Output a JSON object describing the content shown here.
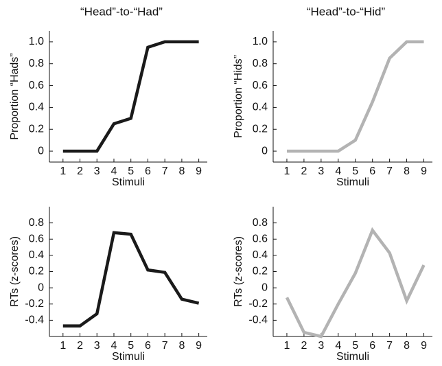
{
  "chart_data": [
    {
      "type": "line",
      "title": "“Head”-to-“Had”",
      "ylabel": "Proportion “Hads”",
      "xlabel": "Stimuli",
      "x": [
        1,
        2,
        3,
        4,
        5,
        6,
        7,
        8,
        9
      ],
      "xlim": [
        0.2,
        9.5
      ],
      "xticks": [
        1,
        2,
        3,
        4,
        5,
        6,
        7,
        8,
        9
      ],
      "ylim": [
        -0.1,
        1.1
      ],
      "yticks": [
        0,
        0.2,
        0.4,
        0.6,
        0.8,
        {
          "value": 1,
          "label": "1.0"
        }
      ],
      "series": [
        {
          "color": "#1a1a1a",
          "values": [
            0,
            0,
            0,
            0.25,
            0.3,
            0.95,
            1,
            1,
            1
          ]
        }
      ]
    },
    {
      "type": "line",
      "title": "“Head”-to-“Hid”",
      "ylabel": "Proportion “Hids”",
      "xlabel": "Stimuli",
      "x": [
        1,
        2,
        3,
        4,
        5,
        6,
        7,
        8,
        9
      ],
      "xlim": [
        0.2,
        9.5
      ],
      "xticks": [
        1,
        2,
        3,
        4,
        5,
        6,
        7,
        8,
        9
      ],
      "ylim": [
        -0.1,
        1.1
      ],
      "yticks": [
        0,
        0.2,
        0.4,
        0.6,
        0.8,
        {
          "value": 1,
          "label": "1.0"
        }
      ],
      "series": [
        {
          "color": "#b3b3b3",
          "values": [
            0,
            0,
            0,
            0,
            0.1,
            0.45,
            0.85,
            1,
            1
          ]
        }
      ]
    },
    {
      "type": "line",
      "ylabel": "RTs (z-scores)",
      "xlabel": "Stimuli",
      "x": [
        1,
        2,
        3,
        4,
        5,
        6,
        7,
        8,
        9
      ],
      "xlim": [
        0.2,
        9.5
      ],
      "xticks": [
        1,
        2,
        3,
        4,
        5,
        6,
        7,
        8,
        9
      ],
      "ylim": [
        -0.6,
        1.0
      ],
      "yticks": [
        -0.4,
        -0.2,
        0,
        0.2,
        0.4,
        0.6,
        0.8
      ],
      "series": [
        {
          "color": "#1a1a1a",
          "values": [
            -0.47,
            -0.47,
            -0.32,
            0.68,
            0.66,
            0.22,
            0.19,
            -0.14,
            -0.19
          ]
        }
      ]
    },
    {
      "type": "line",
      "ylabel": "RTs (z-scores)",
      "xlabel": "Stimuli",
      "x": [
        1,
        2,
        3,
        4,
        5,
        6,
        7,
        8,
        9
      ],
      "xlim": [
        0.2,
        9.5
      ],
      "xticks": [
        1,
        2,
        3,
        4,
        5,
        6,
        7,
        8,
        9
      ],
      "ylim": [
        -0.6,
        1.0
      ],
      "yticks": [
        -0.4,
        -0.2,
        0,
        0.2,
        0.4,
        0.6,
        0.8
      ],
      "series": [
        {
          "color": "#b3b3b3",
          "values": [
            -0.12,
            -0.55,
            -0.6,
            -0.2,
            0.18,
            0.71,
            0.43,
            -0.16,
            0.28
          ]
        }
      ]
    }
  ]
}
